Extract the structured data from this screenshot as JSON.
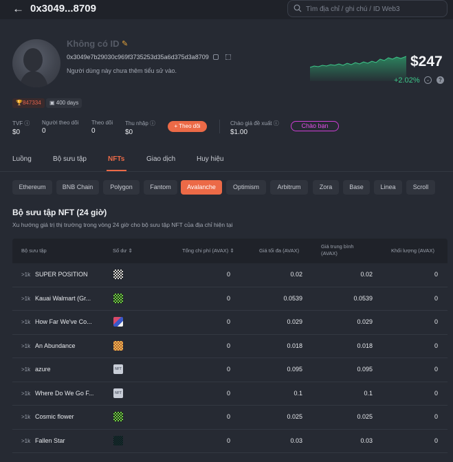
{
  "header": {
    "title": "0x3049...8709",
    "search_placeholder": "Tìm địa chỉ / ghi chú / ID Web3"
  },
  "profile": {
    "name": "Không có ID",
    "address": "0x3049e7b29030c969f3735253d35a6d375d3a8709",
    "bio": "Người dùng này chưa thêm tiểu sử vào.",
    "rank": "847334",
    "days": "400 days",
    "balance": "$247",
    "change": "+2.02%"
  },
  "stats": [
    {
      "label": "TVF",
      "value": "$0"
    },
    {
      "label": "Người theo dõi",
      "value": "0"
    },
    {
      "label": "Theo dõi",
      "value": "0"
    },
    {
      "label": "Thu nhập",
      "value": "$0"
    },
    {
      "label": "Chào giá đề xuất",
      "value": "$1.00"
    }
  ],
  "buttons": {
    "follow": "Theo dõi",
    "hello": "Chào bạn"
  },
  "tabs": [
    "Luồng",
    "Bộ sưu tập",
    "NFTs",
    "Giao dịch",
    "Huy hiệu"
  ],
  "active_tab": "NFTs",
  "chains": [
    "Ethereum",
    "BNB Chain",
    "Polygon",
    "Fantom",
    "Avalanche",
    "Optimism",
    "Arbitrum",
    "Zora",
    "Base",
    "Linea",
    "Scroll"
  ],
  "active_chain": "Avalanche",
  "section": {
    "title": "Bộ sưu tập NFT (24 giờ)",
    "subtitle": "Xu hướng giá trị thị trường trong vòng 24 giờ cho bộ sưu tập NFT của địa chỉ hiện tại"
  },
  "table": {
    "headers": [
      "Bộ sưu tập",
      "Số dư",
      "Tổng chi phí (AVAX)",
      "Giá tối đa (AVAX)",
      "Giá trung bình (AVAX)",
      "Khối lượng (AVAX)"
    ],
    "rows": [
      {
        "rank": ">1k",
        "name": "SUPER POSITION",
        "cost": "0",
        "max": "0.02",
        "avg": "0.02",
        "volume": "0",
        "thumb": "pixel-gray"
      },
      {
        "rank": ">1k",
        "name": "Kauai Walmart (Gr...",
        "cost": "0",
        "max": "0.0539",
        "avg": "0.0539",
        "volume": "0",
        "thumb": "pixel-green"
      },
      {
        "rank": ">1k",
        "name": "How Far We've Co...",
        "cost": "0",
        "max": "0.029",
        "avg": "0.029",
        "volume": "0",
        "thumb": "pixel-red"
      },
      {
        "rank": ">1k",
        "name": "An Abundance",
        "cost": "0",
        "max": "0.018",
        "avg": "0.018",
        "volume": "0",
        "thumb": "pixel-yellow"
      },
      {
        "rank": ">1k",
        "name": "azure",
        "cost": "0",
        "max": "0.095",
        "avg": "0.095",
        "volume": "0",
        "thumb": "nft-label"
      },
      {
        "rank": ">1k",
        "name": "Where Do We Go F...",
        "cost": "0",
        "max": "0.1",
        "avg": "0.1",
        "volume": "0",
        "thumb": "nft-label"
      },
      {
        "rank": ">1k",
        "name": "Cosmic flower",
        "cost": "0",
        "max": "0.025",
        "avg": "0.025",
        "volume": "0",
        "thumb": "pixel-green"
      },
      {
        "rank": ">1k",
        "name": "Fallen Star",
        "cost": "0",
        "max": "0.03",
        "avg": "0.03",
        "volume": "0",
        "thumb": "pixel-dark"
      }
    ]
  },
  "thumb_label": "NFT",
  "colors": {
    "accent": "#ec6a47",
    "positive": "#3ec98b",
    "hello": "#e050e6"
  }
}
